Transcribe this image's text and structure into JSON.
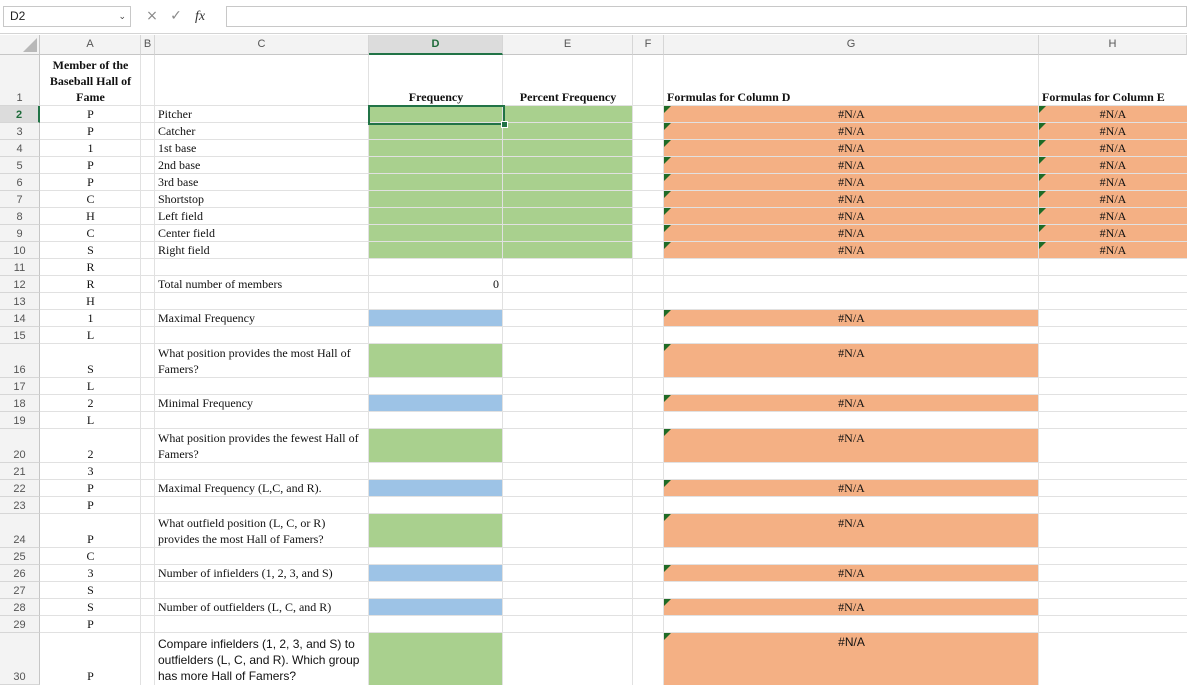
{
  "formula_bar": {
    "name_box": "D2",
    "cancel_icon": "×",
    "enter_icon": "✓",
    "fx_label": "fx",
    "formula": ""
  },
  "columns": [
    "A",
    "B",
    "C",
    "D",
    "E",
    "F",
    "G",
    "H"
  ],
  "headers": {
    "a1": "Member of the Baseball Hall of Fame",
    "d1": "Frequency",
    "e1": "Percent Frequency",
    "g1": "Formulas for Column D",
    "h1": "Formulas for Column E"
  },
  "column_a": [
    "P",
    "P",
    "1",
    "P",
    "P",
    "C",
    "H",
    "C",
    "S",
    "R",
    "R",
    "H",
    "1",
    "L",
    "S",
    "L",
    "2",
    "L",
    "2",
    "3",
    "P",
    "P",
    "P",
    "C",
    "3",
    "S",
    "S",
    "P",
    "P"
  ],
  "positions": [
    "Pitcher",
    "Catcher",
    "1st base",
    "2nd base",
    "3rd base",
    "Shortstop",
    "Left field",
    "Center field",
    "Right field"
  ],
  "na": "#N/A",
  "questions": {
    "total": "Total number of members",
    "total_value": "0",
    "max_freq": "Maximal Frequency",
    "most_q": "What position provides the most Hall of Famers?",
    "min_freq": "Minimal Frequency",
    "fewest_q": "What position provides the fewest Hall of Famers?",
    "max_lcr": "Maximal Frequency (L,C, and R).",
    "outfield_q": "What outfield position (L, C, or R) provides the most Hall of Famers?",
    "infielders": "Number of infielders (1, 2, 3, and S)",
    "outfielders": "Number of outfielders (L, C, and R)",
    "compare_q": "Compare infielders (1, 2, 3, and S) to outfielders (L, C, and R). Which group has more Hall of Famers?"
  },
  "colors": {
    "green": "#a9d08e",
    "blue": "#9dc3e6",
    "orange": "#f4b084",
    "selection": "#217346"
  }
}
